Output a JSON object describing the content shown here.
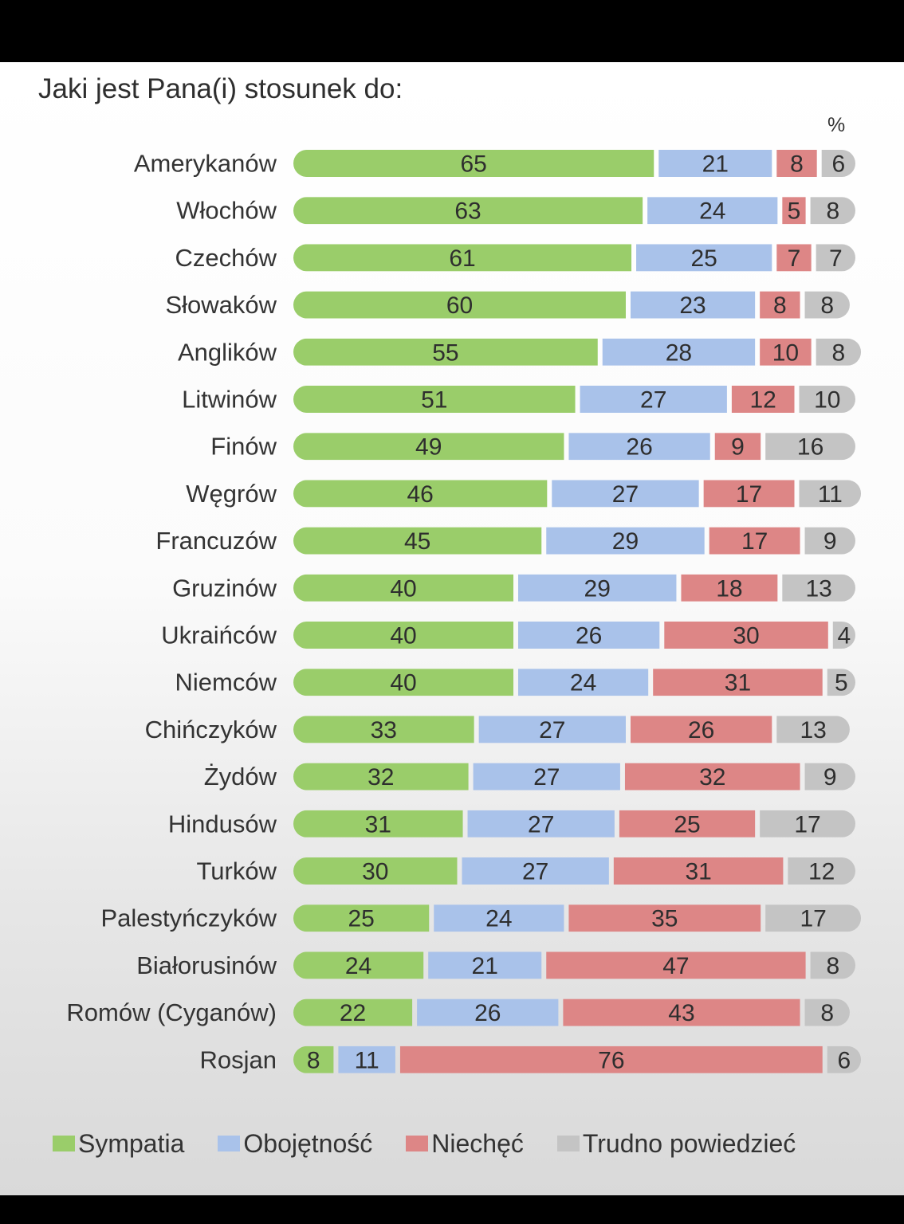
{
  "title": "Jaki jest Pana(i) stosunek do:",
  "unit": "%",
  "colors": {
    "Sympatia": "#9acd6a",
    "Obojętność": "#a9c2ea",
    "Niechęć": "#dd8686",
    "Trudno powiedzieć": "#c4c4c4"
  },
  "chart_data": {
    "type": "bar",
    "orientation": "horizontal",
    "stacked": true,
    "categories": [
      "Amerykanów",
      "Włochów",
      "Czechów",
      "Słowaków",
      "Anglików",
      "Litwinów",
      "Finów",
      "Węgrów",
      "Francuzów",
      "Gruzinów",
      "Ukraińców",
      "Niemców",
      "Chińczyków",
      "Żydów",
      "Hindusów",
      "Turków",
      "Palestyńczyków",
      "Białorusinów",
      "Romów (Cyganów)",
      "Rosjan"
    ],
    "series": [
      {
        "name": "Sympatia",
        "values": [
          65,
          63,
          61,
          60,
          55,
          51,
          49,
          46,
          45,
          40,
          40,
          40,
          33,
          32,
          31,
          30,
          25,
          24,
          22,
          8
        ]
      },
      {
        "name": "Obojętność",
        "values": [
          21,
          24,
          25,
          23,
          28,
          27,
          26,
          27,
          29,
          29,
          26,
          24,
          27,
          27,
          27,
          27,
          24,
          21,
          26,
          11
        ]
      },
      {
        "name": "Niechęć",
        "values": [
          8,
          5,
          7,
          8,
          10,
          12,
          9,
          17,
          17,
          18,
          30,
          31,
          26,
          32,
          25,
          31,
          35,
          47,
          43,
          76
        ]
      },
      {
        "name": "Trudno powiedzieć",
        "values": [
          6,
          8,
          7,
          8,
          8,
          10,
          16,
          11,
          9,
          13,
          4,
          5,
          13,
          9,
          17,
          12,
          17,
          8,
          8,
          6
        ]
      }
    ],
    "unit": "%",
    "legend_position": "bottom",
    "grid": false
  }
}
